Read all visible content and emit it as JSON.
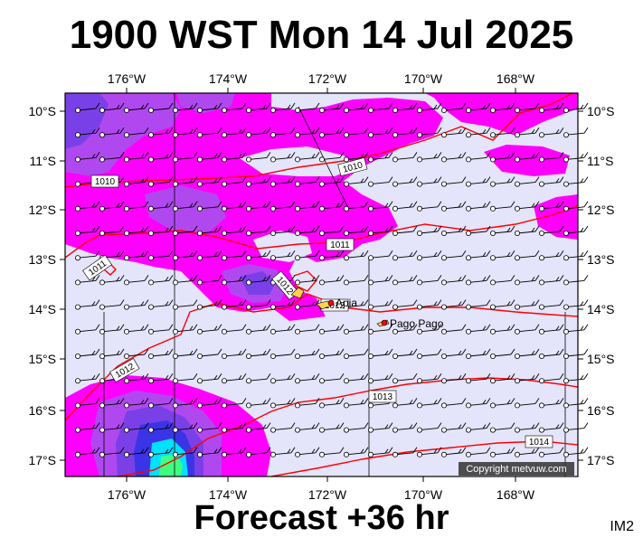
{
  "title": "1900 WST Mon 14 Jul 2025",
  "subtitle": "Forecast +36 hr",
  "corner_tag": "IM2",
  "copyright": "Copyright metvuw.com",
  "axes": {
    "lon_labels": [
      "176°W",
      "174°W",
      "172°W",
      "170°W",
      "168°W"
    ],
    "lat_labels": [
      "10°S",
      "11°S",
      "12°S",
      "13°S",
      "14°S",
      "15°S",
      "16°S",
      "17°S"
    ]
  },
  "isobar_labels": [
    "1010",
    "1010",
    "1011",
    "1011",
    "1012",
    "1012",
    "1012",
    "1013",
    "1014"
  ],
  "places": [
    {
      "name": "Apia"
    },
    {
      "name": "Pago Pago"
    }
  ],
  "colors": {
    "background": "#e4e4fb",
    "rain_magenta": "#ff00ff",
    "rain_purple": "#b048f0",
    "rain_violet": "#7a40e8",
    "rain_blue": "#3b34e6",
    "rain_cyan": "#00e0ff",
    "rain_green": "#40ff80",
    "isobar": "#ff0000"
  }
}
